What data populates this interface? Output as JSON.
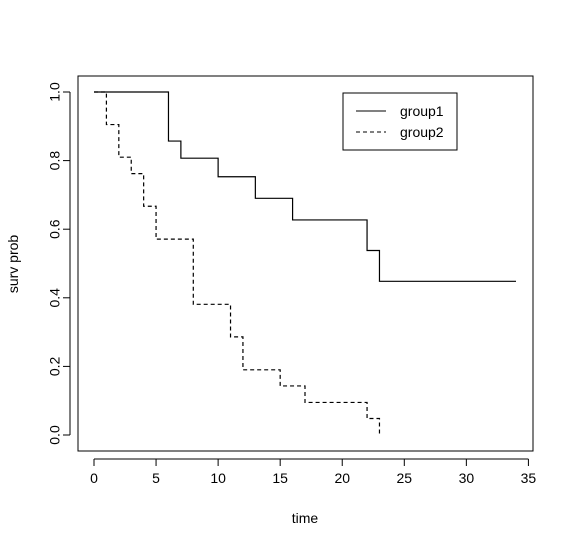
{
  "chart_data": {
    "type": "line",
    "step": true,
    "xlabel": "time",
    "ylabel": "surv prob",
    "xlim": [
      0,
      34
    ],
    "ylim": [
      0,
      1
    ],
    "x_ticks": [
      0,
      5,
      10,
      15,
      20,
      25,
      30,
      35
    ],
    "x_tick_labels": [
      "0",
      "5",
      "10",
      "15",
      "20",
      "25",
      "30",
      "35"
    ],
    "y_ticks": [
      0,
      0.2,
      0.4,
      0.6,
      0.8,
      1.0
    ],
    "y_tick_labels": [
      "0.0",
      "0.2",
      "0.4",
      "0.6",
      "0.8",
      "1.0"
    ],
    "grid": false,
    "legend_position": "top-right",
    "series": [
      {
        "name": "group1",
        "line_style": "solid",
        "color": "#000000",
        "x": [
          0,
          6,
          7,
          10,
          13,
          16,
          22,
          23,
          34
        ],
        "y": [
          1.0,
          0.857,
          0.807,
          0.753,
          0.69,
          0.627,
          0.538,
          0.448,
          0.448
        ]
      },
      {
        "name": "group2",
        "line_style": "dashed",
        "color": "#000000",
        "x": [
          0,
          1,
          2,
          3,
          4,
          5,
          8,
          11,
          12,
          15,
          17,
          22,
          23
        ],
        "y": [
          1.0,
          0.905,
          0.81,
          0.762,
          0.667,
          0.571,
          0.381,
          0.286,
          0.19,
          0.143,
          0.095,
          0.048,
          0.0
        ]
      }
    ]
  }
}
